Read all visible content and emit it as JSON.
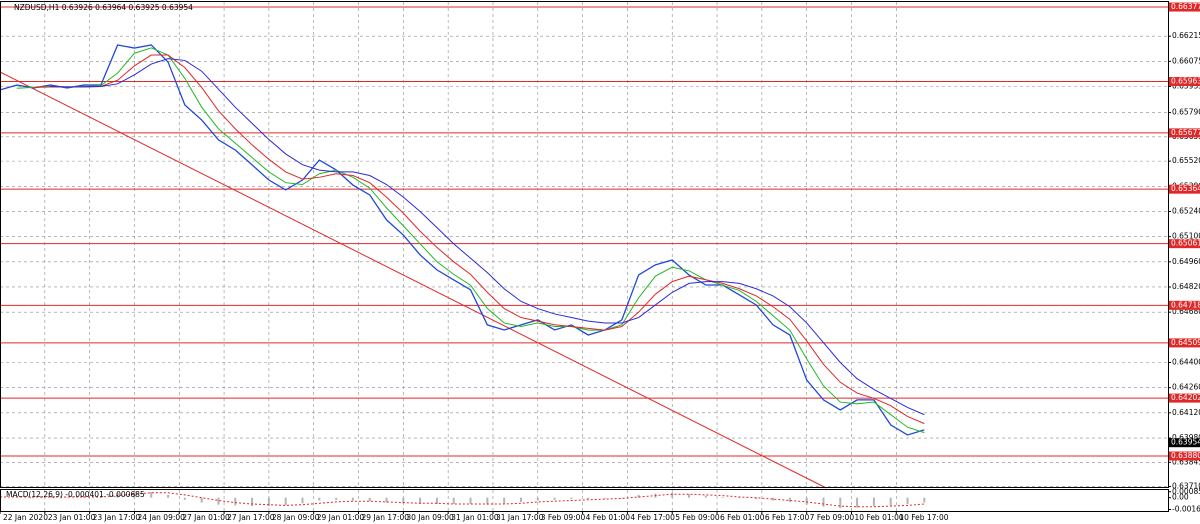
{
  "chart_data": {
    "type": "line",
    "title": "NZDUSD,H1  0.63926 0.63964 0.63925 0.63954",
    "grid": true,
    "x": [
      0,
      6,
      12,
      18,
      24,
      30,
      36,
      42,
      48,
      54,
      60,
      66,
      72,
      78,
      84,
      90,
      96,
      102,
      108,
      114,
      120,
      126,
      132,
      138,
      144,
      150,
      156,
      162,
      168,
      174,
      180,
      186,
      192,
      198,
      204,
      210,
      216,
      222,
      228,
      234,
      240,
      246,
      252,
      258,
      264,
      270,
      276,
      282,
      288,
      294,
      300,
      306,
      312,
      318,
      324,
      330
    ],
    "xlim": [
      0,
      417
    ],
    "xticks": [
      {
        "value": 0,
        "label": "22 Jan 2020"
      },
      {
        "value": 16,
        "label": "23 Jan 01:00"
      },
      {
        "value": 32,
        "label": "23 Jan 17:00"
      },
      {
        "value": 48,
        "label": "24 Jan 09:00"
      },
      {
        "value": 64,
        "label": "27 Jan 01:00"
      },
      {
        "value": 80,
        "label": "27 Jan 17:00"
      },
      {
        "value": 96,
        "label": "28 Jan 09:00"
      },
      {
        "value": 112,
        "label": "29 Jan 01:00"
      },
      {
        "value": 128,
        "label": "29 Jan 17:00"
      },
      {
        "value": 144,
        "label": "30 Jan 09:00"
      },
      {
        "value": 160,
        "label": "31 Jan 01:00"
      },
      {
        "value": 176,
        "label": "31 Jan 17:00"
      },
      {
        "value": 192,
        "label": "3 Feb 09:00"
      },
      {
        "value": 208,
        "label": "4 Feb 01:00"
      },
      {
        "value": 224,
        "label": "4 Feb 17:00"
      },
      {
        "value": 240,
        "label": "5 Feb 09:00"
      },
      {
        "value": 256,
        "label": "6 Feb 01:00"
      },
      {
        "value": 272,
        "label": "6 Feb 17:00"
      },
      {
        "value": 288,
        "label": "7 Feb 09:00"
      },
      {
        "value": 304,
        "label": "10 Feb 01:00"
      },
      {
        "value": 320,
        "label": "10 Feb 17:00"
      }
    ],
    "ylim": [
      0.63702,
      0.66405
    ],
    "yticks": [
      0.66215,
      0.66075,
      0.65935,
      {
        "value": 0.6579,
        "label": "0.65790"
      },
      0.65655,
      {
        "value": 0.6552,
        "label": "0.65520"
      },
      {
        "value": 0.6538,
        "label": "0.65380"
      },
      {
        "value": 0.6524,
        "label": "0.65240"
      },
      {
        "value": 0.651,
        "label": "0.65100"
      },
      {
        "value": 0.6496,
        "label": "0.64960"
      },
      {
        "value": 0.6482,
        "label": "0.64820"
      },
      {
        "value": 0.6468,
        "label": "0.64680"
      },
      {
        "value": 0.644,
        "label": "0.64400"
      },
      {
        "value": 0.6426,
        "label": "0.64260"
      },
      {
        "value": 0.6412,
        "label": "0.64120"
      },
      {
        "value": 0.6398,
        "label": "0.63980"
      },
      0.63845,
      {
        "value": 0.6371,
        "label": "0.63710"
      }
    ],
    "series": [
      {
        "color": "#1f49d8",
        "values": [
          0.65916,
          0.65943,
          0.65927,
          0.65943,
          0.65927,
          0.65943,
          0.65943,
          0.66166,
          0.66149,
          0.66166,
          0.66071,
          0.65832,
          0.65749,
          0.65638,
          0.65582,
          0.65499,
          0.65415,
          0.6536,
          0.65415,
          0.65526,
          0.65471,
          0.65387,
          0.65332,
          0.65193,
          0.65109,
          0.64998,
          0.64915,
          0.64859,
          0.64804,
          0.64609,
          0.64581,
          0.64609,
          0.64637,
          0.64581,
          0.64609,
          0.64553,
          0.64581,
          0.64637,
          0.64887,
          0.64943,
          0.6497,
          0.64887,
          0.64831,
          0.64831,
          0.64776,
          0.6472,
          0.64609,
          0.64553,
          0.64303,
          0.64192,
          0.64136,
          0.64192,
          0.64192,
          0.64053,
          0.63997,
          0.64025
        ]
      },
      {
        "color": "#22b822",
        "values": [
          null,
          0.65925,
          0.6593,
          0.65935,
          0.65932,
          0.65935,
          0.6594,
          0.6601,
          0.6612,
          0.6615,
          0.6611,
          0.6598,
          0.6582,
          0.657,
          0.6562,
          0.6554,
          0.6546,
          0.654,
          0.6539,
          0.6545,
          0.6547,
          0.6543,
          0.6537,
          0.6526,
          0.6516,
          0.6506,
          0.6496,
          0.6489,
          0.6483,
          0.647,
          0.6462,
          0.646,
          0.6462,
          0.646,
          0.646,
          0.6458,
          0.6458,
          0.6461,
          0.6476,
          0.6488,
          0.6493,
          0.6491,
          0.6486,
          0.6483,
          0.648,
          0.6474,
          0.6466,
          0.6458,
          0.6442,
          0.6427,
          0.6418,
          0.6417,
          0.6418,
          0.6411,
          0.6404,
          0.6401
        ]
      },
      {
        "color": "#e02828",
        "values": [
          null,
          null,
          0.6593,
          0.65932,
          0.65932,
          0.65933,
          0.65935,
          0.6597,
          0.6605,
          0.6611,
          0.6611,
          0.6604,
          0.6593,
          0.658,
          0.657,
          0.6561,
          0.6553,
          0.6546,
          0.6542,
          0.6543,
          0.6545,
          0.6544,
          0.654,
          0.6532,
          0.6523,
          0.6513,
          0.6504,
          0.6496,
          0.6489,
          0.6479,
          0.647,
          0.6465,
          0.6463,
          0.6461,
          0.646,
          0.6459,
          0.6458,
          0.646,
          0.6468,
          0.6478,
          0.6485,
          0.6488,
          0.6486,
          0.6484,
          0.6481,
          0.6477,
          0.6471,
          0.6464,
          0.6452,
          0.6439,
          0.6429,
          0.6423,
          0.642,
          0.6416,
          0.641,
          0.6406
        ]
      },
      {
        "color": "#2a2ad8",
        "values": [
          null,
          null,
          null,
          0.65935,
          0.65933,
          0.65933,
          0.65935,
          0.6595,
          0.66,
          0.6606,
          0.6609,
          0.6608,
          0.6602,
          0.6592,
          0.6582,
          0.6573,
          0.6564,
          0.6556,
          0.655,
          0.6547,
          0.6546,
          0.6546,
          0.6544,
          0.6539,
          0.6532,
          0.6524,
          0.6515,
          0.6506,
          0.6498,
          0.649,
          0.6481,
          0.6474,
          0.647,
          0.6467,
          0.6465,
          0.6463,
          0.6462,
          0.6462,
          0.6465,
          0.6472,
          0.6479,
          0.6484,
          0.6485,
          0.6485,
          0.6484,
          0.6481,
          0.6477,
          0.6471,
          0.6462,
          0.6451,
          0.644,
          0.6431,
          0.6425,
          0.642,
          0.6415,
          0.6411
        ]
      }
    ],
    "trendline": {
      "color": "#e02828",
      "x": [
        0,
        295
      ],
      "values": [
        0.66016,
        0.63702
      ]
    },
    "levels": [
      0.66377,
      0.65963,
      0.65677,
      0.65364,
      0.65061,
      0.64718,
      0.64509,
      0.64202,
      {
        "value": 0.6388,
        "label": "0.63880"
      }
    ],
    "level_color": "#e02828",
    "last_price": 0.63954,
    "macd": {
      "title": "MACD(12,26,9) -0.000401 -0.000685",
      "ylim": [
        -0.0019,
        0.0011
      ],
      "yticks": [
        0.00085,
        {
          "value": 0,
          "label": "0.00"
        },
        -0.001686
      ],
      "histogram_color": "#b4b4b4",
      "signal_color": "#e02828",
      "histogram": [
        0.0001,
        0.0001,
        0,
        0.0001,
        0,
        0.0001,
        0.0002,
        0.0007,
        0.0009,
        0.0008,
        0.0004,
        -0.0003,
        -0.0007,
        -0.001,
        -0.0011,
        -0.0012,
        -0.0012,
        -0.0011,
        -0.0008,
        -0.0004,
        -0.0003,
        -0.0004,
        -0.0005,
        -0.0007,
        -0.0008,
        -0.0009,
        -0.0009,
        -0.0009,
        -0.0009,
        -0.001,
        -0.0009,
        -0.0006,
        -0.0004,
        -0.0003,
        -0.0002,
        -0.0002,
        -0.0001,
        0,
        0.0004,
        0.0006,
        0.0007,
        0.0005,
        0.0003,
        0.0001,
        0,
        -0.0002,
        -0.0004,
        -0.0006,
        -0.001,
        -0.0013,
        -0.0015,
        -0.0014,
        -0.0012,
        -0.0011,
        -0.0009,
        -0.0007
      ],
      "signal": [
        0.0001,
        0.0001,
        0.0001,
        0.0001,
        0.0001,
        0.0001,
        0.0001,
        0.0003,
        0.0005,
        0.0007,
        0.0007,
        0.0004,
        0,
        -0.0004,
        -0.0007,
        -0.0009,
        -0.001,
        -0.0011,
        -0.001,
        -0.0008,
        -0.0006,
        -0.0005,
        -0.0005,
        -0.0006,
        -0.0007,
        -0.0008,
        -0.0008,
        -0.0009,
        -0.0009,
        -0.0009,
        -0.0009,
        -0.0008,
        -0.0006,
        -0.0005,
        -0.0004,
        -0.0003,
        -0.0002,
        -0.0001,
        0.0001,
        0.0003,
        0.0005,
        0.0005,
        0.0004,
        0.0003,
        0.0001,
        0,
        -0.0002,
        -0.0004,
        -0.0006,
        -0.0009,
        -0.0012,
        -0.0013,
        -0.0013,
        -0.0012,
        -0.0011,
        -0.0009
      ]
    }
  }
}
